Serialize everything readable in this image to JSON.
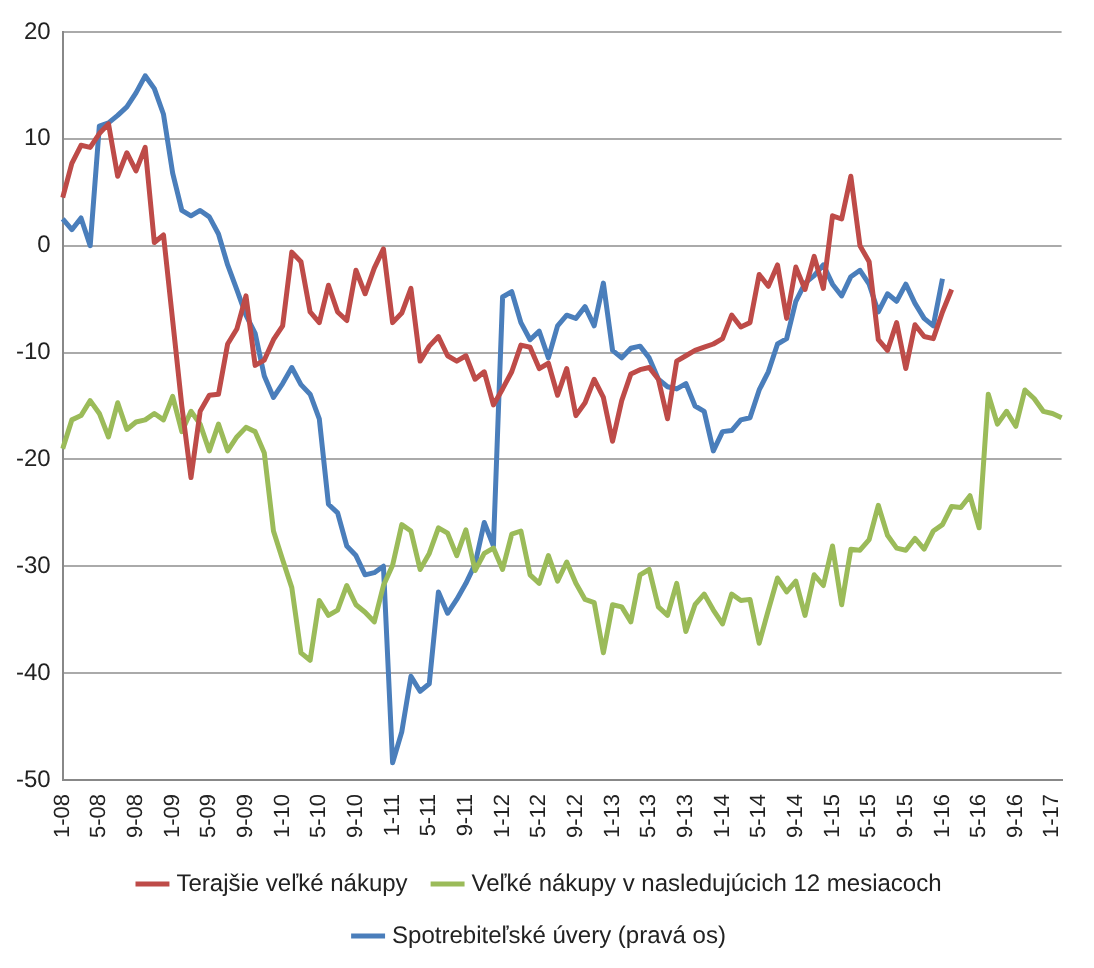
{
  "chart_data": {
    "type": "line",
    "categories": [
      "1-08",
      null,
      null,
      null,
      "5-08",
      null,
      null,
      null,
      "9-08",
      null,
      null,
      null,
      "1-09",
      null,
      null,
      null,
      "5-09",
      null,
      null,
      null,
      "9-09",
      null,
      null,
      null,
      "1-10",
      null,
      null,
      null,
      "5-10",
      null,
      null,
      null,
      "9-10",
      null,
      null,
      null,
      "1-11",
      null,
      null,
      null,
      "5-11",
      null,
      null,
      null,
      "9-11",
      null,
      null,
      null,
      "1-12",
      null,
      null,
      null,
      "5-12",
      null,
      null,
      null,
      "9-12",
      null,
      null,
      null,
      "1-13",
      null,
      null,
      null,
      "5-13",
      null,
      null,
      null,
      "9-13",
      null,
      null,
      null,
      "1-14",
      null,
      null,
      null,
      "5-14",
      null,
      null,
      null,
      "9-14",
      null,
      null,
      null,
      "1-15",
      null,
      null,
      null,
      "5-15",
      null,
      null,
      null,
      "9-15",
      null,
      null,
      null,
      "1-16",
      null,
      null,
      null,
      "5-16",
      null,
      null,
      null,
      "9-16",
      null,
      null,
      null,
      "1-17",
      null
    ],
    "series": [
      {
        "name": "Terajšie veľké nákupy",
        "color": "#be4b48",
        "values": [
          4.5,
          7.7,
          9.4,
          9.2,
          10.5,
          11.4,
          6.5,
          8.7,
          7,
          9.2,
          0.3,
          1,
          -7,
          -15,
          -21.7,
          -15.5,
          -14,
          -13.9,
          -9.2,
          -7.8,
          -4.7,
          -11.2,
          -10.7,
          -8.8,
          -7.5,
          -0.6,
          -1.5,
          -6.2,
          -7.2,
          -3.7,
          -6.2,
          -7,
          -2.3,
          -4.5,
          -2.1,
          -0.3,
          -7.2,
          -6.3,
          -4,
          -10.8,
          -9.4,
          -8.5,
          -10.3,
          -10.8,
          -10.3,
          -12.5,
          -11.8,
          -14.9,
          -13.4,
          -11.8,
          -9.3,
          -9.5,
          -11.5,
          -11,
          -14,
          -11.5,
          -15.9,
          -14.7,
          -12.5,
          -14.2,
          -18.3,
          -14.5,
          -12,
          -11.6,
          -11.4,
          -12.5,
          -16.2,
          -10.8,
          -10.3,
          -9.8,
          -9.5,
          -9.2,
          -8.7,
          -6.5,
          -7.6,
          -7.2,
          -2.7,
          -3.8,
          -1.8,
          -6.8,
          -2,
          -4.1,
          -1,
          -4,
          2.8,
          2.5,
          6.5,
          0,
          -1.5,
          -8.8,
          -9.8,
          -7.2,
          -11.5,
          -7.4,
          -8.5,
          -8.7,
          -6.2,
          -4.1,
          null,
          null,
          null,
          null,
          null,
          null,
          null,
          null,
          null,
          null,
          null,
          null
        ]
      },
      {
        "name": "Veľké nákupy v nasledujúcich 12 mesiacoch",
        "color": "#9bbb59",
        "values": [
          -19,
          -16.3,
          -15.9,
          -14.5,
          -15.7,
          -17.9,
          -14.7,
          -17.2,
          -16.5,
          -16.3,
          -15.7,
          -16.3,
          -14.1,
          -17.4,
          -15.5,
          -16.7,
          -19.2,
          -16.7,
          -19.2,
          -17.9,
          -17,
          -17.4,
          -19.4,
          -26.7,
          -29.4,
          -32,
          -38.1,
          -38.8,
          -33.2,
          -34.6,
          -34.1,
          -31.8,
          -33.6,
          -34.3,
          -35.2,
          -31.8,
          -29.9,
          -26.1,
          -26.7,
          -30.3,
          -28.8,
          -26.4,
          -26.9,
          -29,
          -26.6,
          -30.4,
          -28.8,
          -28.3,
          -30.3,
          -27,
          -26.7,
          -30.8,
          -31.6,
          -29,
          -31.4,
          -29.6,
          -31.6,
          -33.1,
          -33.4,
          -38.1,
          -33.6,
          -33.8,
          -35.2,
          -30.8,
          -30.3,
          -33.8,
          -34.6,
          -31.6,
          -36.1,
          -33.6,
          -32.6,
          -34.1,
          -35.4,
          -32.6,
          -33.2,
          -33.1,
          -37.2,
          -34.1,
          -31.1,
          -32.4,
          -31.4,
          -34.6,
          -30.8,
          -31.8,
          -28.1,
          -33.6,
          -28.4,
          -28.5,
          -27.5,
          -24.3,
          -27.1,
          -28.3,
          -28.5,
          -27.4,
          -28.4,
          -26.7,
          -26.1,
          -24.4,
          -24.5,
          -23.4,
          -26.4,
          -13.9,
          -16.7,
          -15.5,
          -16.9,
          -13.5,
          -14.3,
          -15.5,
          -15.7,
          -16.1
        ]
      },
      {
        "name": "Spotrebiteľské úvery (pravá os)",
        "color": "#4a7ebb",
        "values": [
          2.5,
          1.5,
          2.6,
          0,
          11.2,
          11.5,
          12.2,
          13,
          14.3,
          15.9,
          14.7,
          12.3,
          6.8,
          3.3,
          2.8,
          3.3,
          2.7,
          1.1,
          -1.8,
          -4.1,
          -6.5,
          -8.2,
          -12.2,
          -14.2,
          -12.9,
          -11.4,
          -13,
          -13.9,
          -16.2,
          -24.2,
          -25,
          -28.1,
          -29,
          -30.8,
          -30.6,
          -30,
          -48.4,
          -45.5,
          -40.3,
          -41.7,
          -41,
          -32.4,
          -34.4,
          -33.1,
          -31.6,
          -29.8,
          -25.9,
          -28.1,
          -4.8,
          -4.3,
          -7.2,
          -8.8,
          -8,
          -10.5,
          -7.5,
          -6.5,
          -6.8,
          -5.7,
          -7.5,
          -3.5,
          -9.8,
          -10.5,
          -9.6,
          -9.4,
          -10.5,
          -12.5,
          -13.2,
          -13.4,
          -12.9,
          -15,
          -15.5,
          -19.2,
          -17.4,
          -17.3,
          -16.3,
          -16.1,
          -13.5,
          -11.8,
          -9.2,
          -8.7,
          -5.2,
          -3.5,
          -2.8,
          -1.8,
          -3.6,
          -4.7,
          -2.9,
          -2.3,
          -3.6,
          -6.2,
          -4.5,
          -5.2,
          -3.6,
          -5.4,
          -6.8,
          -7.5,
          -3.1,
          null,
          null,
          null,
          null,
          null,
          null,
          null,
          null,
          null,
          null,
          null,
          null,
          null
        ]
      }
    ],
    "ylim": [
      -50,
      20
    ],
    "yticks": [
      -50,
      -40,
      -30,
      -20,
      -10,
      0,
      10,
      20
    ],
    "grid": "y",
    "legend": "bottom",
    "marker": "none",
    "line_style": "solid"
  }
}
